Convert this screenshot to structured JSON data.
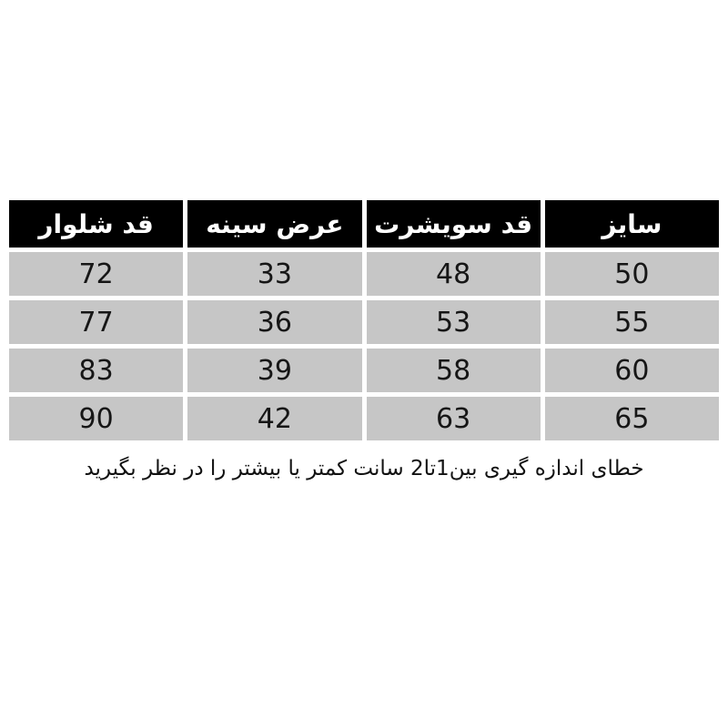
{
  "table": {
    "headers": [
      "سایز",
      "قد سویشرت",
      "عرض سینه",
      "قد شلوار"
    ],
    "rows": [
      [
        "50",
        "48",
        "33",
        "72"
      ],
      [
        "55",
        "53",
        "36",
        "77"
      ],
      [
        "60",
        "58",
        "39",
        "83"
      ],
      [
        "65",
        "63",
        "42",
        "90"
      ]
    ]
  },
  "footer": {
    "note": "خطای اندازه گیری بین1تا2 سانت کمتر یا بیشتر را در نظر بگیرید"
  },
  "colors": {
    "page_bg": "#ffffff",
    "header_bg": "#000000",
    "header_text": "#ffffff",
    "row_bg": "#c6c6c6",
    "cell_text": "#161616"
  },
  "chart_data": {
    "type": "table",
    "title": "",
    "columns": [
      "سایز",
      "قد سویشرت",
      "عرض سینه",
      "قد شلوار"
    ],
    "rows": [
      [
        50,
        48,
        33,
        72
      ],
      [
        55,
        53,
        36,
        77
      ],
      [
        60,
        58,
        39,
        83
      ],
      [
        65,
        63,
        42,
        90
      ]
    ],
    "note": "خطای اندازه گیری بین1تا2 سانت کمتر یا بیشتر را در نظر بگیرید",
    "layout": {
      "direction": "rtl",
      "header_style": "black-on-white",
      "row_style": "gray-bands"
    }
  }
}
